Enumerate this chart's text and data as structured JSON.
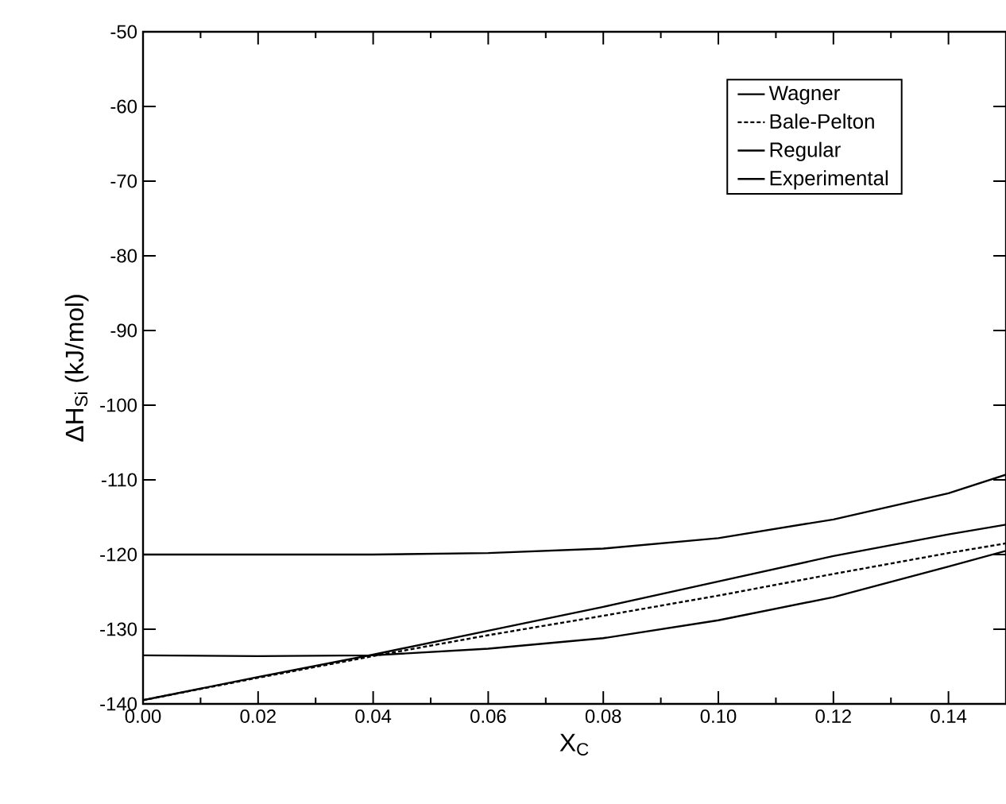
{
  "chart_data": {
    "type": "line",
    "xlabel": "X$_{C}$",
    "ylabel": "ΔH$_{Si}$ (kJ/mol)",
    "x": [
      0,
      0.02,
      0.04,
      0.06,
      0.08,
      0.1,
      0.12,
      0.14,
      0.15
    ],
    "xlim": [
      0,
      0.15
    ],
    "ylim": [
      -140,
      -50
    ],
    "xticks": [
      {
        "value": 0,
        "label": "0.00"
      },
      0.02,
      0.04,
      0.06,
      0.08,
      {
        "value": 0.1,
        "label": "0.10"
      },
      0.12,
      0.14
    ],
    "yticks": [
      -140,
      -130,
      -120,
      -110,
      -100,
      -90,
      -80,
      -70,
      -60,
      -50
    ],
    "legend": "top right",
    "grid": false,
    "marker": "none",
    "series": [
      {
        "name": "Wagner",
        "color": "#000000",
        "line_style": "solid",
        "values": [
          -139.5,
          -136.4,
          -133.4,
          -130.2,
          -127.0,
          -123.6,
          -120.2,
          -117.3,
          -116.0
        ]
      },
      {
        "name": "Bale-Pelton",
        "color": "#000000",
        "line_style": "dashed",
        "values": [
          -139.5,
          -136.5,
          -133.6,
          -130.8,
          -128.2,
          -125.5,
          -122.6,
          -119.8,
          -118.5
        ]
      },
      {
        "name": "Regular",
        "color": "#000000",
        "line_style": "solid",
        "values": [
          -133.5,
          -133.6,
          -133.5,
          -132.6,
          -131.2,
          -128.8,
          -125.7,
          -121.6,
          -119.5
        ]
      },
      {
        "name": "Experimental",
        "color": "#000000",
        "line_style": "solid",
        "values": [
          -120.0,
          -120.0,
          -120.0,
          -119.8,
          -119.2,
          -117.8,
          -115.3,
          -111.8,
          -109.3
        ]
      }
    ]
  }
}
